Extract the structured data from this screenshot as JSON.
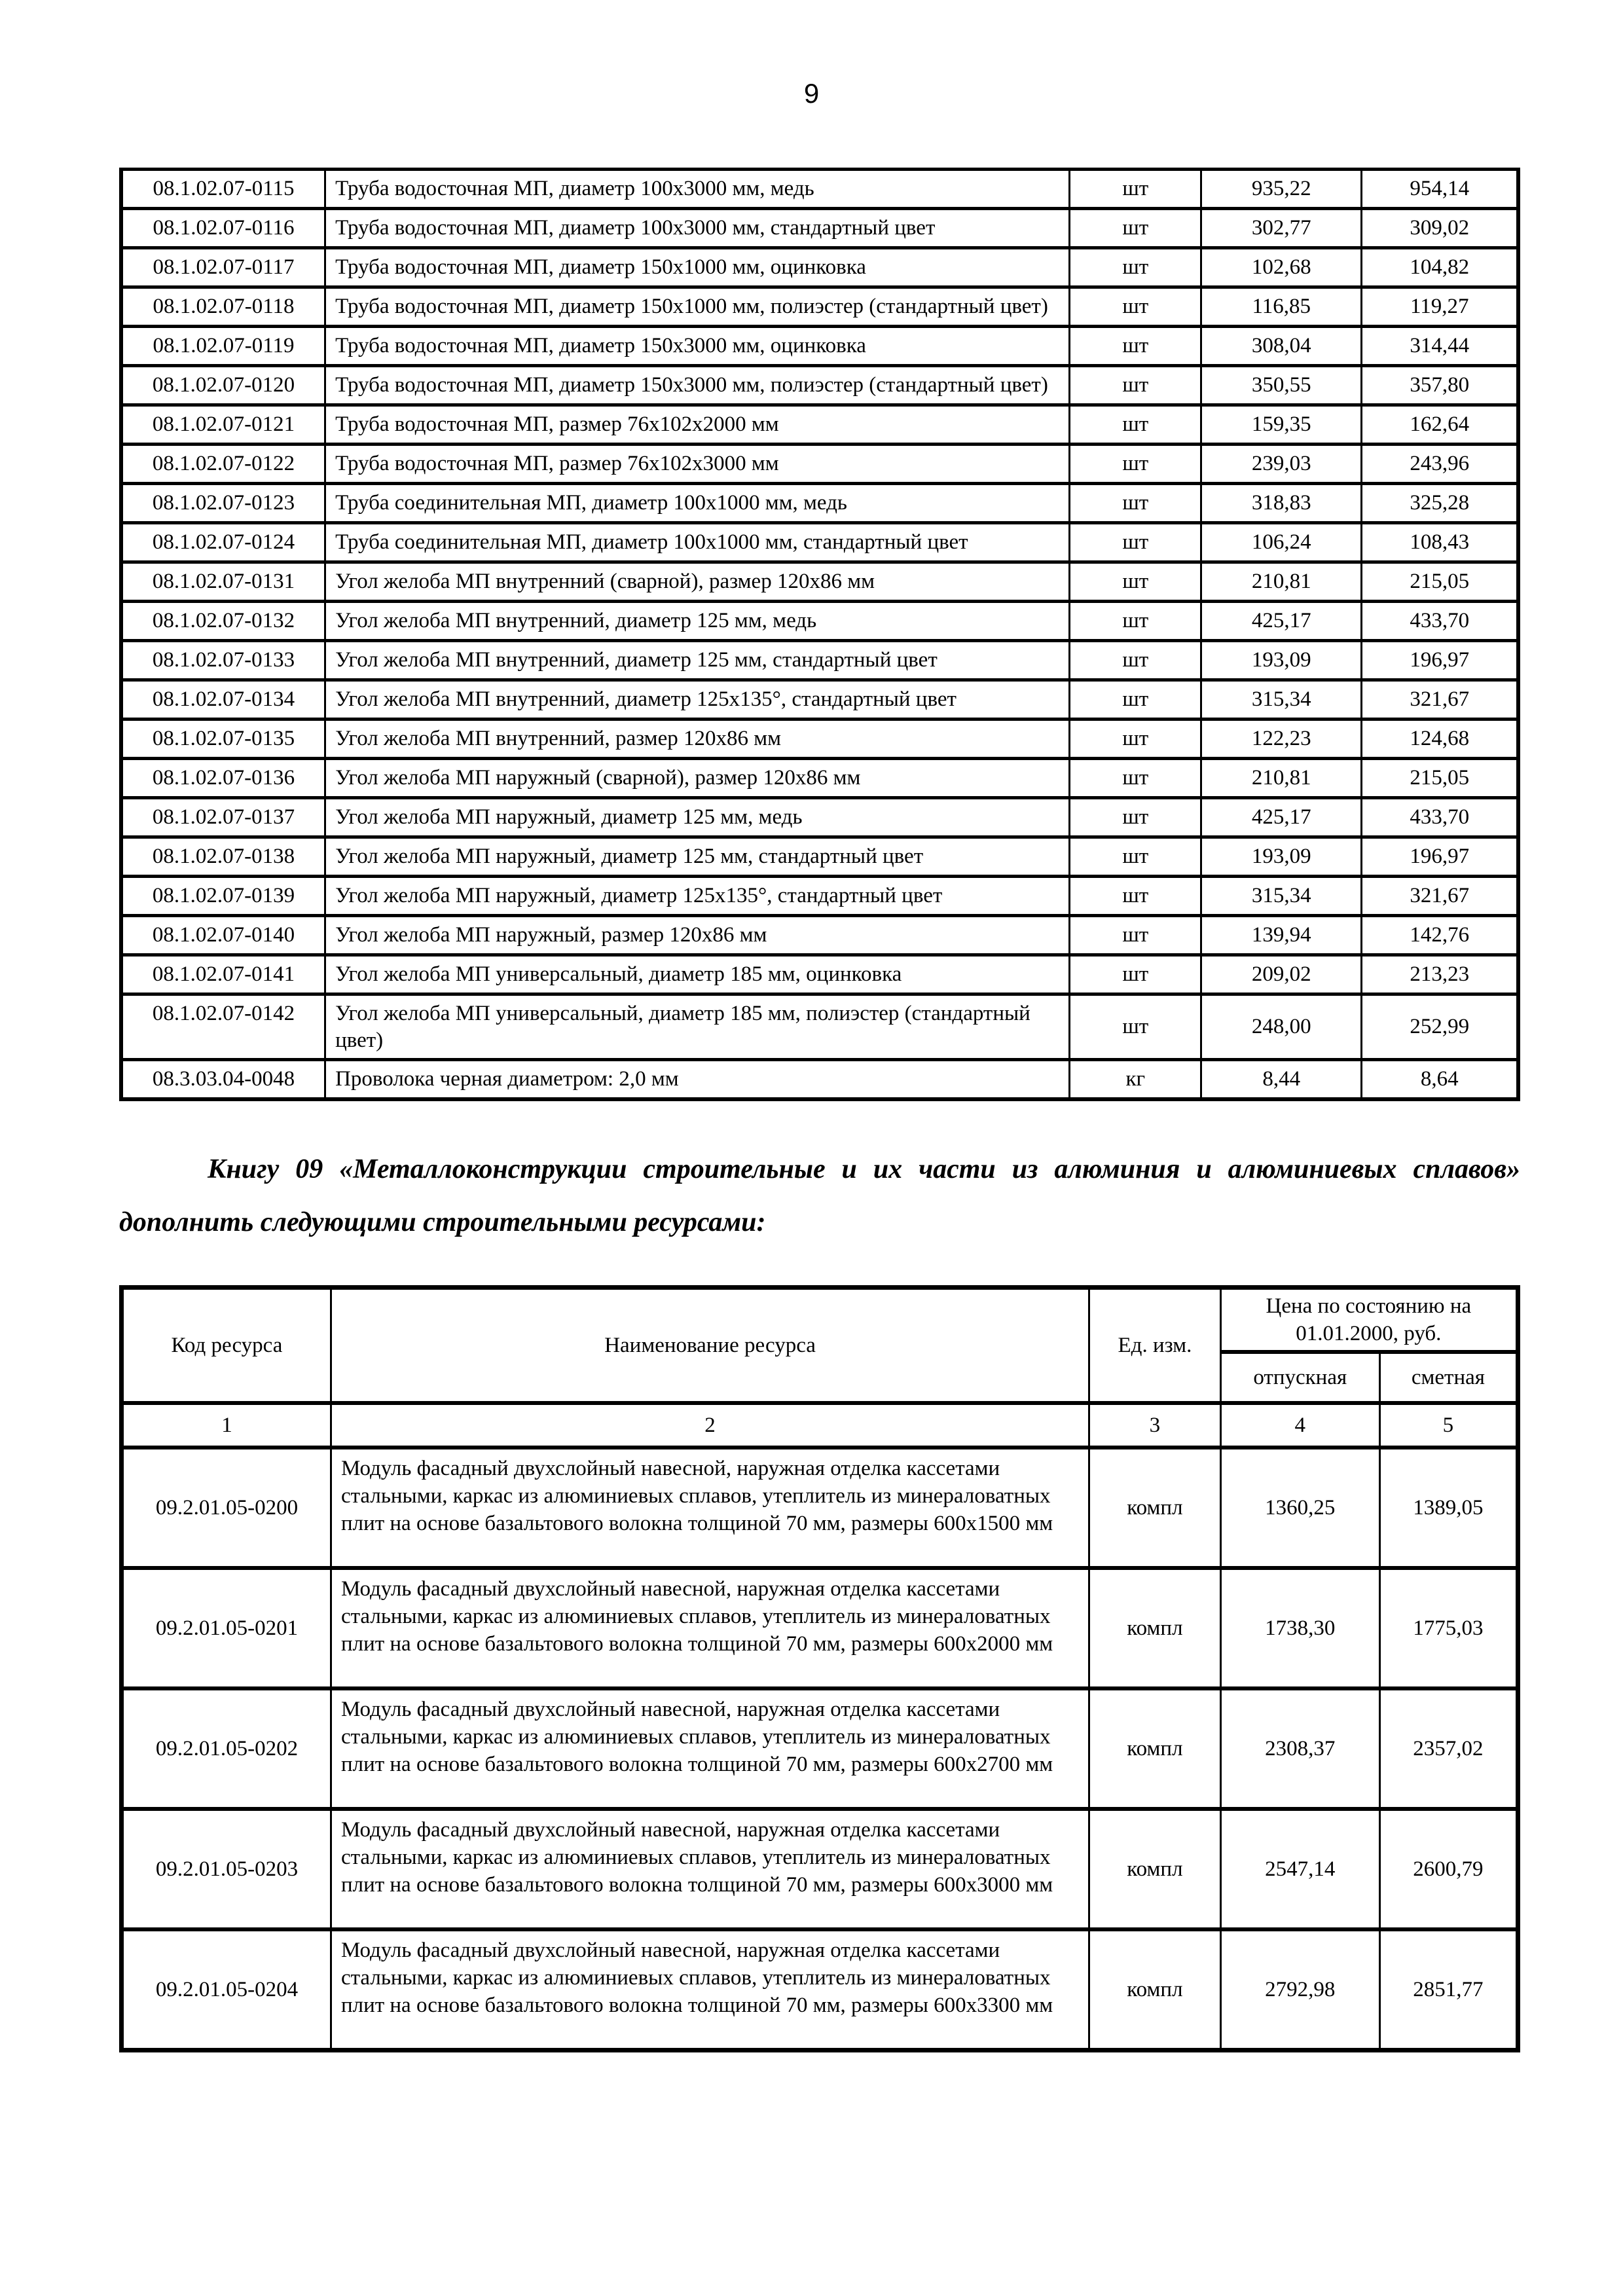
{
  "page": {
    "number": "9"
  },
  "table1": {
    "rows": [
      {
        "code": "08.1.02.07-0115",
        "desc": "Труба водосточная МП, диаметр 100х3000 мм, медь",
        "unit": "шт",
        "p1": "935,22",
        "p2": "954,14"
      },
      {
        "code": "08.1.02.07-0116",
        "desc": "Труба водосточная МП, диаметр 100х3000 мм, стандартный цвет",
        "unit": "шт",
        "p1": "302,77",
        "p2": "309,02"
      },
      {
        "code": "08.1.02.07-0117",
        "desc": "Труба водосточная МП, диаметр 150х1000 мм, оцинковка",
        "unit": "шт",
        "p1": "102,68",
        "p2": "104,82"
      },
      {
        "code": "08.1.02.07-0118",
        "desc": "Труба водосточная МП, диаметр 150х1000 мм, полиэстер (стандартный цвет)",
        "unit": "шт",
        "p1": "116,85",
        "p2": "119,27"
      },
      {
        "code": "08.1.02.07-0119",
        "desc": "Труба водосточная МП, диаметр 150х3000 мм, оцинковка",
        "unit": "шт",
        "p1": "308,04",
        "p2": "314,44"
      },
      {
        "code": "08.1.02.07-0120",
        "desc": "Труба водосточная МП, диаметр 150х3000 мм, полиэстер (стандартный цвет)",
        "unit": "шт",
        "p1": "350,55",
        "p2": "357,80"
      },
      {
        "code": "08.1.02.07-0121",
        "desc": "Труба водосточная МП, размер 76х102х2000 мм",
        "unit": "шт",
        "p1": "159,35",
        "p2": "162,64"
      },
      {
        "code": "08.1.02.07-0122",
        "desc": "Труба водосточная МП, размер 76х102х3000 мм",
        "unit": "шт",
        "p1": "239,03",
        "p2": "243,96"
      },
      {
        "code": "08.1.02.07-0123",
        "desc": "Труба соединительная МП, диаметр 100х1000 мм, медь",
        "unit": "шт",
        "p1": "318,83",
        "p2": "325,28"
      },
      {
        "code": "08.1.02.07-0124",
        "desc": "Труба соединительная МП, диаметр 100х1000 мм, стандартный цвет",
        "unit": "шт",
        "p1": "106,24",
        "p2": "108,43"
      },
      {
        "code": "08.1.02.07-0131",
        "desc": "Угол желоба МП внутренний (сварной), размер 120х86 мм",
        "unit": "шт",
        "p1": "210,81",
        "p2": "215,05"
      },
      {
        "code": "08.1.02.07-0132",
        "desc": "Угол желоба МП внутренний, диаметр 125 мм, медь",
        "unit": "шт",
        "p1": "425,17",
        "p2": "433,70"
      },
      {
        "code": "08.1.02.07-0133",
        "desc": "Угол желоба МП внутренний, диаметр 125 мм, стандартный цвет",
        "unit": "шт",
        "p1": "193,09",
        "p2": "196,97"
      },
      {
        "code": "08.1.02.07-0134",
        "desc": "Угол желоба МП внутренний, диаметр 125х135°, стандартный цвет",
        "unit": "шт",
        "p1": "315,34",
        "p2": "321,67"
      },
      {
        "code": "08.1.02.07-0135",
        "desc": "Угол желоба МП внутренний, размер 120х86 мм",
        "unit": "шт",
        "p1": "122,23",
        "p2": "124,68"
      },
      {
        "code": "08.1.02.07-0136",
        "desc": "Угол желоба МП наружный (сварной), размер 120х86 мм",
        "unit": "шт",
        "p1": "210,81",
        "p2": "215,05"
      },
      {
        "code": "08.1.02.07-0137",
        "desc": "Угол желоба МП наружный, диаметр 125 мм, медь",
        "unit": "шт",
        "p1": "425,17",
        "p2": "433,70"
      },
      {
        "code": "08.1.02.07-0138",
        "desc": "Угол желоба МП наружный, диаметр 125 мм, стандартный цвет",
        "unit": "шт",
        "p1": "193,09",
        "p2": "196,97"
      },
      {
        "code": "08.1.02.07-0139",
        "desc": "Угол желоба МП наружный, диаметр 125х135°, стандартный цвет",
        "unit": "шт",
        "p1": "315,34",
        "p2": "321,67"
      },
      {
        "code": "08.1.02.07-0140",
        "desc": "Угол желоба МП наружный, размер 120х86 мм",
        "unit": "шт",
        "p1": "139,94",
        "p2": "142,76"
      },
      {
        "code": "08.1.02.07-0141",
        "desc": "Угол желоба МП универсальный, диаметр 185 мм, оцинковка",
        "unit": "шт",
        "p1": "209,02",
        "p2": "213,23"
      },
      {
        "code": "08.1.02.07-0142",
        "desc": "Угол желоба МП универсальный, диаметр 185 мм, полиэстер (стандартный цвет)",
        "unit": "шт",
        "p1": "248,00",
        "p2": "252,99"
      },
      {
        "code": "08.3.03.04-0048",
        "desc": "Проволока черная диаметром: 2,0 мм",
        "unit": "кг",
        "p1": "8,44",
        "p2": "8,64"
      }
    ]
  },
  "note": {
    "text": "Книгу 09 «Металлоконструкции строительные и их части из алюминия и алюминиевых сплавов» дополнить следующими строительными ресурсами:"
  },
  "table2": {
    "header": {
      "code": "Код ресурса",
      "name": "Наименование ресурса",
      "unit": "Ед. изм.",
      "price_group": "Цена по состоянию на 01.01.2000, руб.",
      "price_sub1": "отпускная",
      "price_sub2": "сметная",
      "col_numbers": [
        "1",
        "2",
        "3",
        "4",
        "5"
      ]
    },
    "rows": [
      {
        "code": "09.2.01.05-0200",
        "desc": "Модуль фасадный двухслойный навесной, наружная отделка кассетами стальными, каркас из алюминиевых сплавов, утеплитель из минераловатных плит на основе базальтового волокна толщиной 70 мм, размеры 600х1500 мм",
        "unit": "компл",
        "p1": "1360,25",
        "p2": "1389,05"
      },
      {
        "code": "09.2.01.05-0201",
        "desc": "Модуль фасадный двухслойный навесной, наружная отделка кассетами стальными, каркас из алюминиевых сплавов, утеплитель из минераловатных плит на основе базальтового волокна толщиной 70 мм, размеры 600х2000 мм",
        "unit": "компл",
        "p1": "1738,30",
        "p2": "1775,03"
      },
      {
        "code": "09.2.01.05-0202",
        "desc": "Модуль фасадный двухслойный навесной, наружная отделка кассетами стальными, каркас из алюминиевых сплавов, утеплитель из минераловатных плит на основе базальтового волокна толщиной 70 мм, размеры 600х2700 мм",
        "unit": "компл",
        "p1": "2308,37",
        "p2": "2357,02"
      },
      {
        "code": "09.2.01.05-0203",
        "desc": "Модуль фасадный двухслойный навесной, наружная отделка кассетами стальными, каркас из алюминиевых сплавов, утеплитель из минераловатных плит на основе базальтового волокна толщиной 70 мм, размеры 600х3000 мм",
        "unit": "компл",
        "p1": "2547,14",
        "p2": "2600,79"
      },
      {
        "code": "09.2.01.05-0204",
        "desc": "Модуль фасадный двухслойный навесной, наружная отделка кассетами стальными, каркас из алюминиевых сплавов, утеплитель из минераловатных плит на основе базальтового волокна толщиной 70 мм, размеры 600х3300 мм",
        "unit": "компл",
        "p1": "2792,98",
        "p2": "2851,77"
      }
    ]
  }
}
